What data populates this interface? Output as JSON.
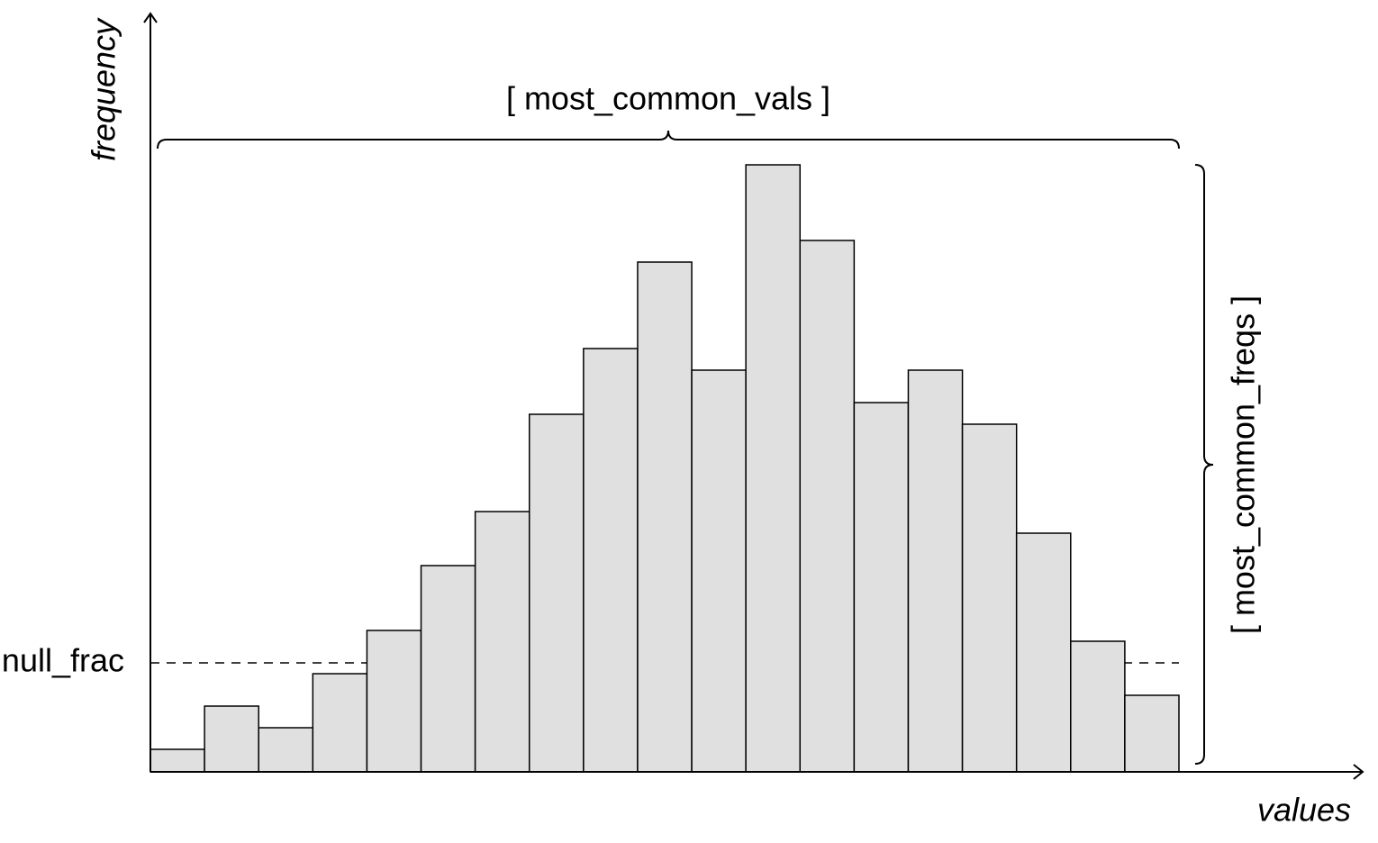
{
  "chart_data": {
    "type": "bar",
    "x_label": "values",
    "y_label": "frequency",
    "values": [
      25,
      73,
      49,
      109,
      157,
      229,
      289,
      397,
      470,
      566,
      446,
      674,
      590,
      410,
      446,
      386,
      265,
      145,
      85
    ],
    "ylim": [
      0,
      840
    ],
    "color": "#e0e0e0",
    "annotations": {
      "null_frac": {
        "label": "null_frac",
        "value": 121
      },
      "most_common_vals": "[ most_common_vals ]",
      "most_common_freqs": "[ most_common_freqs ]"
    }
  }
}
